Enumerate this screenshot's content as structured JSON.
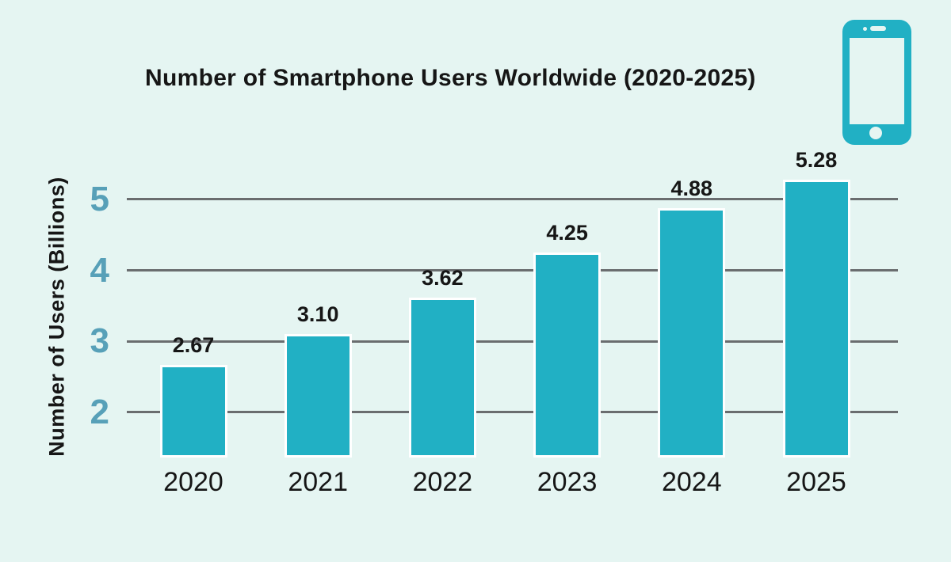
{
  "title": "Number of Smartphone Users Worldwide (2020-2025)",
  "icons": {
    "header_icon": "smartphone-icon"
  },
  "colors": {
    "background": "#e5f5f2",
    "bar": "#21b0c4",
    "bar_border": "#ffffff",
    "gridline": "#6a6d6f",
    "tick_label": "#57a0b8",
    "text": "#161616"
  },
  "chart_data": {
    "type": "bar",
    "categories": [
      "2020",
      "2021",
      "2022",
      "2023",
      "2024",
      "2025"
    ],
    "values": [
      2.67,
      3.1,
      3.62,
      4.25,
      4.88,
      5.28
    ],
    "value_labels": [
      "2.67",
      "3.10",
      "3.62",
      "4.25",
      "4.88",
      "5.28"
    ],
    "title": "Number of Smartphone Users Worldwide (2020-2025)",
    "xlabel": "",
    "ylabel": "Number of Users (Billions)",
    "yticks": [
      5,
      4,
      3,
      2
    ],
    "ylim": [
      1.36,
      5.58
    ],
    "grid": true,
    "legend": false
  }
}
